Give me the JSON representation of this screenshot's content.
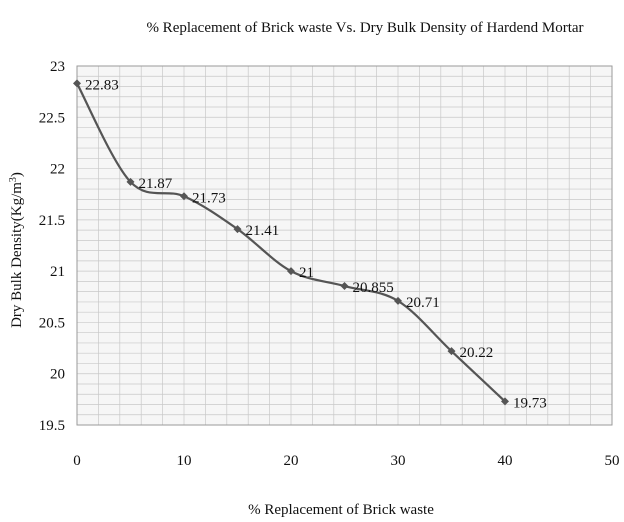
{
  "chart_data": {
    "type": "line",
    "title": "% Replacement of Brick waste Vs. Dry Bulk Density of Hardend Mortar",
    "xlabel": "% Replacement of Brick waste",
    "ylabel_main": "Dry Bulk Density(Kg/m",
    "ylabel_sup": "3",
    "ylabel_end": ")",
    "xlim": [
      0,
      50
    ],
    "ylim": [
      19.5,
      23
    ],
    "x_ticks": [
      0,
      10,
      20,
      30,
      40,
      50
    ],
    "y_ticks": [
      19.5,
      20,
      20.5,
      21,
      21.5,
      22,
      22.5,
      23
    ],
    "x_tick_labels": [
      "0",
      "10",
      "20",
      "30",
      "40",
      "50"
    ],
    "y_tick_labels": [
      "19.5",
      "20",
      "20.5",
      "21",
      "21.5",
      "22",
      "22.5",
      "23"
    ],
    "grid": true,
    "legend": "none",
    "line_color": "#555555",
    "marker_color": "#555555",
    "grid_color": "#c8c8c8",
    "series": [
      {
        "x": [
          0,
          5,
          10,
          15,
          20,
          25,
          30,
          35,
          40
        ],
        "y": [
          22.83,
          21.87,
          21.73,
          21.41,
          21.0,
          20.855,
          20.71,
          20.22,
          19.73
        ],
        "labels": [
          "22.83",
          "21.87",
          "21.73",
          "21.41",
          "21",
          "20.855",
          "20.71",
          "20.22",
          "19.73"
        ]
      }
    ]
  }
}
